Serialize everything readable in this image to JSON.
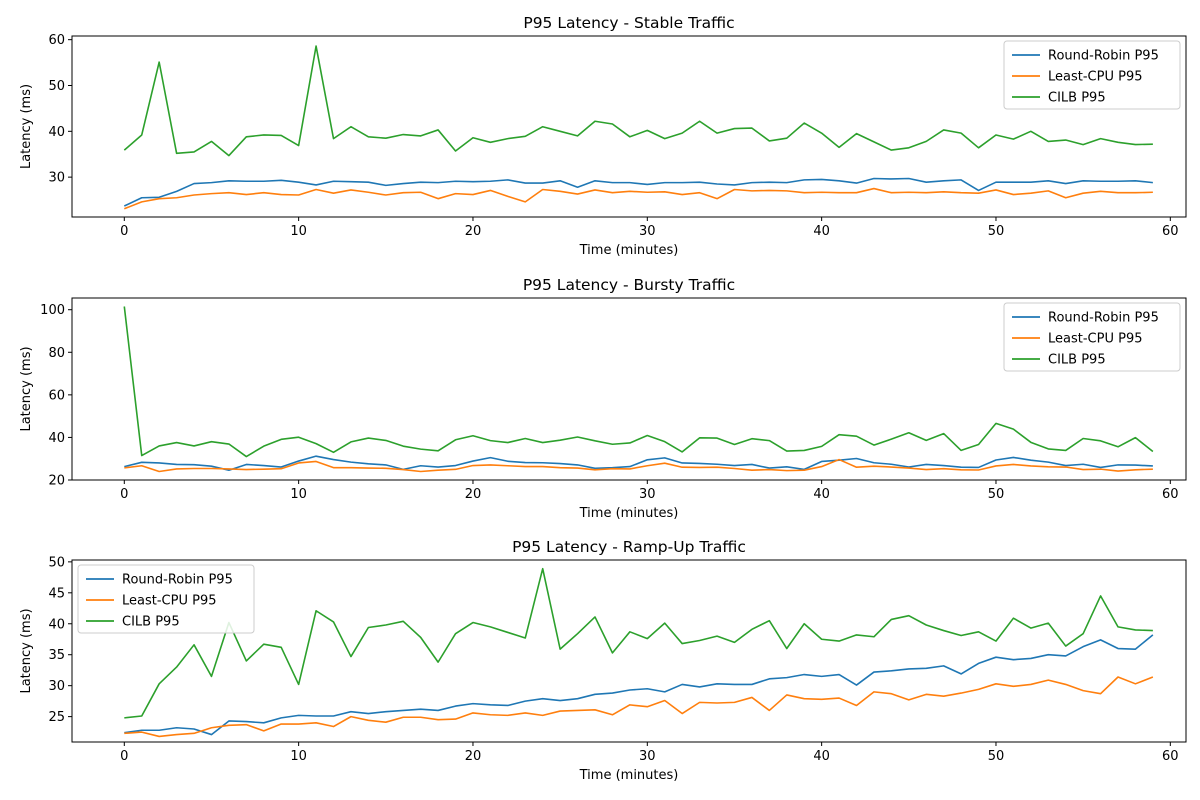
{
  "chart_data": [
    {
      "type": "line",
      "title": "P95 Latency - Stable Traffic",
      "xlabel": "Time (minutes)",
      "ylabel": "Latency (ms)",
      "xlim": [
        -3,
        60.9
      ],
      "ylim": [
        21.3,
        60.8
      ],
      "xticks": [
        0,
        10,
        20,
        30,
        40,
        50,
        60
      ],
      "yticks": [
        30,
        40,
        50,
        60
      ],
      "legend": "top-right",
      "grid": false,
      "series": [
        {
          "name": "Round-Robin P95",
          "color": "#1f77b4",
          "values": [
            23.7,
            25.5,
            25.6,
            26.9,
            28.6,
            28.8,
            29.2,
            29.1,
            29.1,
            29.3,
            28.9,
            28.3,
            29.1,
            29.0,
            28.9,
            28.2,
            28.6,
            28.9,
            28.8,
            29.1,
            29.0,
            29.1,
            29.4,
            28.7,
            28.7,
            29.2,
            27.8,
            29.2,
            28.8,
            28.8,
            28.4,
            28.8,
            28.8,
            28.9,
            28.5,
            28.3,
            28.8,
            28.9,
            28.8,
            29.4,
            29.5,
            29.2,
            28.7,
            29.7,
            29.6,
            29.7,
            28.9,
            29.2,
            29.4,
            27.1,
            28.9,
            28.9,
            28.9,
            29.2,
            28.6,
            29.2,
            29.1,
            29.1,
            29.2,
            28.8
          ]
        },
        {
          "name": "Least-CPU P95",
          "color": "#ff7f0e",
          "values": [
            23.1,
            24.6,
            25.3,
            25.5,
            26.1,
            26.4,
            26.6,
            26.2,
            26.6,
            26.2,
            26.1,
            27.3,
            26.5,
            27.2,
            26.7,
            26.1,
            26.6,
            26.7,
            25.3,
            26.4,
            26.2,
            27.1,
            25.8,
            24.6,
            27.3,
            26.9,
            26.3,
            27.2,
            26.6,
            26.9,
            26.7,
            26.8,
            26.2,
            26.6,
            25.3,
            27.3,
            27.0,
            27.1,
            27.0,
            26.6,
            26.7,
            26.6,
            26.6,
            27.5,
            26.6,
            26.7,
            26.6,
            26.8,
            26.6,
            26.5,
            27.2,
            26.2,
            26.5,
            27.0,
            25.5,
            26.5,
            26.9,
            26.6,
            26.6,
            26.7
          ]
        },
        {
          "name": "CILB P95",
          "color": "#2ca02c",
          "values": [
            35.9,
            39.2,
            55.1,
            35.2,
            35.5,
            37.8,
            34.7,
            38.8,
            39.2,
            39.1,
            36.9,
            58.6,
            38.4,
            41.0,
            38.8,
            38.5,
            39.3,
            39.0,
            40.3,
            35.7,
            38.6,
            37.6,
            38.4,
            38.9,
            41.0,
            40.0,
            39.0,
            42.2,
            41.6,
            38.8,
            40.2,
            38.4,
            39.6,
            42.2,
            39.6,
            40.6,
            40.7,
            37.9,
            38.5,
            41.8,
            39.6,
            36.5,
            39.5,
            37.7,
            35.9,
            36.4,
            37.8,
            40.3,
            39.6,
            36.4,
            39.2,
            38.3,
            40.0,
            37.8,
            38.1,
            37.1,
            38.4,
            37.6,
            37.1,
            37.2
          ]
        }
      ]
    },
    {
      "type": "line",
      "title": "P95 Latency - Bursty Traffic",
      "xlabel": "Time (minutes)",
      "ylabel": "Latency (ms)",
      "xlim": [
        -3,
        60.9
      ],
      "ylim": [
        20.0,
        105.5
      ],
      "xticks": [
        0,
        10,
        20,
        30,
        40,
        50,
        60
      ],
      "yticks": [
        20,
        40,
        60,
        80,
        100
      ],
      "legend": "top-right",
      "grid": false,
      "series": [
        {
          "name": "Round-Robin P95",
          "color": "#1f77b4",
          "values": [
            26.3,
            28.3,
            28.0,
            27.3,
            27.2,
            26.5,
            24.6,
            27.3,
            26.8,
            26.1,
            28.9,
            31.2,
            29.6,
            28.4,
            27.6,
            27.1,
            25.0,
            26.7,
            26.1,
            26.8,
            28.9,
            30.5,
            28.8,
            28.2,
            28.1,
            27.7,
            27.1,
            25.5,
            25.8,
            26.3,
            29.5,
            30.4,
            28.0,
            27.8,
            27.4,
            26.8,
            27.3,
            25.6,
            26.2,
            25.0,
            28.7,
            29.3,
            30.1,
            28.1,
            27.4,
            26.1,
            27.3,
            26.8,
            26.0,
            25.9,
            29.4,
            30.6,
            29.3,
            28.4,
            26.8,
            27.4,
            25.9,
            27.1,
            27.0,
            26.6
          ]
        },
        {
          "name": "Least-CPU P95",
          "color": "#ff7f0e",
          "values": [
            25.7,
            26.7,
            24.0,
            25.2,
            25.4,
            25.4,
            25.2,
            24.9,
            25.1,
            25.3,
            28.0,
            28.7,
            25.8,
            25.8,
            25.6,
            25.5,
            24.9,
            24.0,
            24.6,
            25.0,
            26.8,
            27.1,
            26.7,
            26.3,
            26.3,
            25.8,
            25.6,
            24.8,
            25.3,
            25.2,
            26.7,
            27.9,
            26.0,
            25.9,
            26.0,
            25.4,
            24.6,
            24.9,
            24.4,
            24.6,
            26.3,
            29.6,
            26.0,
            26.5,
            26.1,
            25.6,
            24.9,
            25.3,
            24.8,
            24.7,
            26.6,
            27.3,
            26.6,
            26.2,
            26.1,
            24.9,
            25.1,
            24.2,
            24.8,
            25.1
          ]
        },
        {
          "name": "CILB P95",
          "color": "#2ca02c",
          "values": [
            101.5,
            31.5,
            36.0,
            37.6,
            36.0,
            38.0,
            36.9,
            31.0,
            35.9,
            39.1,
            40.1,
            37.1,
            33.0,
            37.9,
            39.7,
            38.6,
            35.9,
            34.5,
            33.7,
            38.9,
            40.8,
            38.5,
            37.6,
            39.5,
            37.6,
            38.7,
            40.2,
            38.4,
            36.8,
            37.4,
            40.9,
            38.0,
            33.2,
            39.8,
            39.7,
            36.7,
            39.4,
            38.5,
            33.6,
            33.9,
            35.8,
            41.3,
            40.6,
            36.4,
            39.2,
            42.2,
            38.6,
            41.8,
            33.9,
            36.7,
            46.6,
            43.9,
            37.7,
            34.6,
            33.9,
            39.5,
            38.4,
            35.6,
            39.9,
            33.4
          ]
        }
      ]
    },
    {
      "type": "line",
      "title": "P95 Latency - Ramp-Up Traffic",
      "xlabel": "Time (minutes)",
      "ylabel": "Latency (ms)",
      "xlim": [
        -3,
        60.9
      ],
      "ylim": [
        20.9,
        50.3
      ],
      "xticks": [
        0,
        10,
        20,
        30,
        40,
        50,
        60
      ],
      "yticks": [
        25,
        30,
        35,
        40,
        45,
        50
      ],
      "legend": "top-left",
      "grid": false,
      "series": [
        {
          "name": "Round-Robin P95",
          "color": "#1f77b4",
          "values": [
            22.4,
            22.8,
            22.8,
            23.2,
            23.0,
            22.1,
            24.3,
            24.2,
            24.0,
            24.8,
            25.2,
            25.1,
            25.1,
            25.8,
            25.5,
            25.8,
            26.0,
            26.2,
            26.0,
            26.7,
            27.1,
            26.9,
            26.8,
            27.5,
            27.9,
            27.6,
            27.9,
            28.6,
            28.8,
            29.3,
            29.5,
            29.0,
            30.2,
            29.8,
            30.3,
            30.2,
            30.2,
            31.1,
            31.3,
            31.8,
            31.5,
            31.8,
            30.1,
            32.2,
            32.4,
            32.7,
            32.8,
            33.2,
            31.9,
            33.6,
            34.6,
            34.2,
            34.4,
            35.0,
            34.8,
            36.3,
            37.4,
            36.0,
            35.9,
            38.2
          ]
        },
        {
          "name": "Least-CPU P95",
          "color": "#ff7f0e",
          "values": [
            22.3,
            22.5,
            21.8,
            22.1,
            22.3,
            23.2,
            23.6,
            23.7,
            22.7,
            23.8,
            23.8,
            24.0,
            23.4,
            25.0,
            24.4,
            24.1,
            24.9,
            24.9,
            24.5,
            24.6,
            25.6,
            25.3,
            25.2,
            25.6,
            25.2,
            25.9,
            26.0,
            26.1,
            25.3,
            26.9,
            26.6,
            27.6,
            25.5,
            27.3,
            27.2,
            27.3,
            28.1,
            26.0,
            28.5,
            27.9,
            27.8,
            28.0,
            26.8,
            29.0,
            28.7,
            27.7,
            28.6,
            28.3,
            28.8,
            29.4,
            30.3,
            29.9,
            30.2,
            30.9,
            30.2,
            29.2,
            28.7,
            31.4,
            30.3,
            31.4
          ]
        },
        {
          "name": "CILB P95",
          "color": "#2ca02c",
          "values": [
            24.8,
            25.1,
            30.3,
            33.0,
            36.6,
            31.5,
            40.2,
            34.0,
            36.7,
            36.2,
            30.2,
            42.1,
            40.3,
            34.7,
            39.4,
            39.8,
            40.4,
            37.8,
            33.8,
            38.4,
            40.2,
            39.5,
            38.6,
            37.7,
            48.9,
            35.9,
            38.4,
            41.1,
            35.3,
            38.7,
            37.6,
            40.1,
            36.8,
            37.3,
            38.0,
            37.0,
            39.1,
            40.5,
            36.0,
            40.0,
            37.5,
            37.2,
            38.2,
            37.9,
            40.7,
            41.3,
            39.8,
            38.9,
            38.1,
            38.7,
            37.2,
            40.9,
            39.3,
            40.1,
            36.4,
            38.4,
            44.5,
            39.5,
            39.0,
            38.9
          ]
        }
      ]
    }
  ]
}
